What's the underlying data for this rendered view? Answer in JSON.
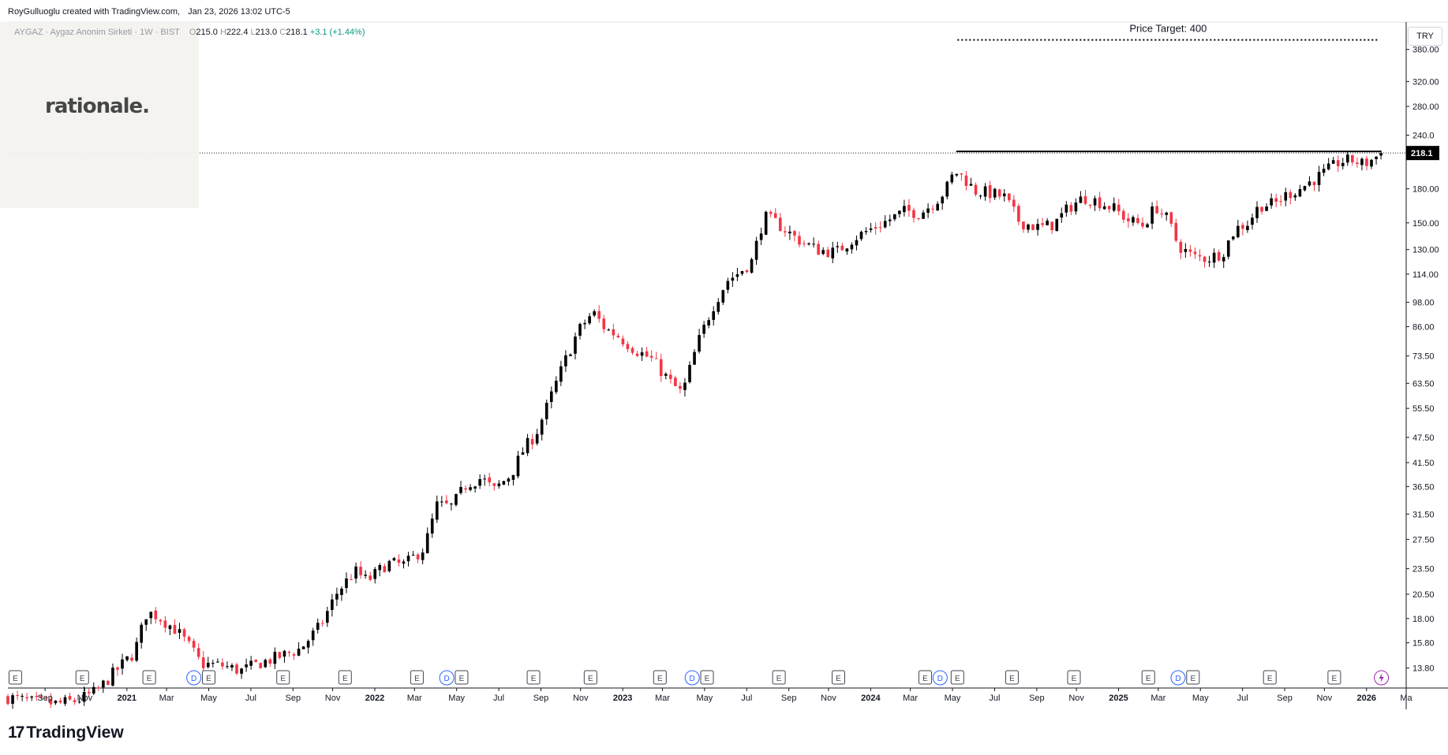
{
  "header": {
    "author": "RoyGulluoglu created with TradingView.com,",
    "timestamp": "Jan 23, 2026 13:02 UTC-5"
  },
  "legend": {
    "symbol": "AYGAZ · Aygaz Anonim Sirketi · 1W · BIST",
    "open_label": "O",
    "open": "215.0",
    "high_label": "H",
    "high": "222.4",
    "low_label": "L",
    "low": "213.0",
    "close_label": "C",
    "close": "218.1",
    "change": "+3.1 (+1.44%)"
  },
  "watermark": {
    "text": "rationale."
  },
  "currency_button": {
    "label": "TRY"
  },
  "footer": {
    "brand": "TradingView",
    "brand_mark": "17"
  },
  "colors": {
    "up": "#000000",
    "down": "#f23645",
    "legend_change": "#089981",
    "event_dividend": "#2962ff",
    "event_earnings": "#434651",
    "event_flash": "#9c27b0"
  },
  "chart_data": {
    "type": "candlestick",
    "scale": "log",
    "ylim": [
      12.4,
      440
    ],
    "y_ticks": [
      13.8,
      15.8,
      18.0,
      20.5,
      23.5,
      27.5,
      31.5,
      36.5,
      41.5,
      47.5,
      55.5,
      63.5,
      73.5,
      86.0,
      98.0,
      114.0,
      130.0,
      150.0,
      180.0,
      240.0,
      280.0,
      320.0,
      380.0
    ],
    "y_tick_labels": [
      "13.80",
      "15.80",
      "18.00",
      "20.50",
      "23.50",
      "27.50",
      "31.50",
      "36.50",
      "41.50",
      "47.50",
      "55.50",
      "63.50",
      "73.50",
      "86.00",
      "98.00",
      "114.00",
      "130.00",
      "150.00",
      "180.00",
      "240.0",
      "280.00",
      "320.00",
      "380.00"
    ],
    "last_price": 218.1,
    "last_price_label": "218.1",
    "x_ticks": [
      {
        "label": "Sep",
        "t": 2020.67
      },
      {
        "label": "Nov",
        "t": 2020.83
      },
      {
        "label": "2021",
        "t": 2021.0
      },
      {
        "label": "Mar",
        "t": 2021.16
      },
      {
        "label": "May",
        "t": 2021.33
      },
      {
        "label": "Jul",
        "t": 2021.5
      },
      {
        "label": "Sep",
        "t": 2021.67
      },
      {
        "label": "Nov",
        "t": 2021.83
      },
      {
        "label": "2022",
        "t": 2022.0
      },
      {
        "label": "Mar",
        "t": 2022.16
      },
      {
        "label": "May",
        "t": 2022.33
      },
      {
        "label": "Jul",
        "t": 2022.5
      },
      {
        "label": "Sep",
        "t": 2022.67
      },
      {
        "label": "Nov",
        "t": 2022.83
      },
      {
        "label": "2023",
        "t": 2023.0
      },
      {
        "label": "Mar",
        "t": 2023.16
      },
      {
        "label": "May",
        "t": 2023.33
      },
      {
        "label": "Jul",
        "t": 2023.5
      },
      {
        "label": "Sep",
        "t": 2023.67
      },
      {
        "label": "Nov",
        "t": 2023.83
      },
      {
        "label": "2024",
        "t": 2024.0
      },
      {
        "label": "Mar",
        "t": 2024.16
      },
      {
        "label": "May",
        "t": 2024.33
      },
      {
        "label": "Jul",
        "t": 2024.5
      },
      {
        "label": "Sep",
        "t": 2024.67
      },
      {
        "label": "Nov",
        "t": 2024.83
      },
      {
        "label": "2025",
        "t": 2025.0
      },
      {
        "label": "Mar",
        "t": 2025.16
      },
      {
        "label": "May",
        "t": 2025.33
      },
      {
        "label": "Jul",
        "t": 2025.5
      },
      {
        "label": "Sep",
        "t": 2025.67
      },
      {
        "label": "Nov",
        "t": 2025.83
      },
      {
        "label": "2026",
        "t": 2026.0
      },
      {
        "label": "Ma",
        "t": 2026.16
      }
    ],
    "x_range": [
      2020.52,
      2026.16
    ],
    "anchors": [
      [
        2020.52,
        11.8
      ],
      [
        2020.62,
        11.5
      ],
      [
        2020.72,
        11.4
      ],
      [
        2020.8,
        11.6
      ],
      [
        2020.88,
        12.2
      ],
      [
        2020.95,
        13.5
      ],
      [
        2021.03,
        15.0
      ],
      [
        2021.08,
        18.6
      ],
      [
        2021.12,
        18.3
      ],
      [
        2021.2,
        16.9
      ],
      [
        2021.26,
        15.3
      ],
      [
        2021.3,
        14.1
      ],
      [
        2021.38,
        14.0
      ],
      [
        2021.46,
        13.6
      ],
      [
        2021.54,
        14.2
      ],
      [
        2021.62,
        14.7
      ],
      [
        2021.7,
        15.3
      ],
      [
        2021.78,
        17.3
      ],
      [
        2021.85,
        20.8
      ],
      [
        2021.92,
        23.2
      ],
      [
        2021.97,
        22.0
      ],
      [
        2022.05,
        24.2
      ],
      [
        2022.12,
        24.0
      ],
      [
        2022.2,
        26.3
      ],
      [
        2022.25,
        33.0
      ],
      [
        2022.31,
        32.8
      ],
      [
        2022.37,
        37.0
      ],
      [
        2022.43,
        38.2
      ],
      [
        2022.48,
        35.8
      ],
      [
        2022.55,
        39.0
      ],
      [
        2022.6,
        44.5
      ],
      [
        2022.65,
        48.5
      ],
      [
        2022.7,
        57.0
      ],
      [
        2022.76,
        70.0
      ],
      [
        2022.82,
        84.0
      ],
      [
        2022.88,
        93.0
      ],
      [
        2022.93,
        85.0
      ],
      [
        2022.98,
        82.0
      ],
      [
        2023.05,
        76.0
      ],
      [
        2023.12,
        72.0
      ],
      [
        2023.19,
        64.0
      ],
      [
        2023.24,
        60.0
      ],
      [
        2023.3,
        78.0
      ],
      [
        2023.36,
        95.0
      ],
      [
        2023.42,
        110.0
      ],
      [
        2023.47,
        115.0
      ],
      [
        2023.52,
        122.0
      ],
      [
        2023.57,
        155.0
      ],
      [
        2023.62,
        150.0
      ],
      [
        2023.7,
        138.0
      ],
      [
        2023.78,
        130.0
      ],
      [
        2023.86,
        128.0
      ],
      [
        2023.93,
        138.0
      ],
      [
        2024.0,
        145.0
      ],
      [
        2024.07,
        152.0
      ],
      [
        2024.14,
        160.0
      ],
      [
        2024.2,
        158.0
      ],
      [
        2024.26,
        168.0
      ],
      [
        2024.3,
        178.0
      ],
      [
        2024.34,
        198.0
      ],
      [
        2024.38,
        190.0
      ],
      [
        2024.42,
        178.0
      ],
      [
        2024.48,
        176.0
      ],
      [
        2024.54,
        172.0
      ],
      [
        2024.6,
        151.0
      ],
      [
        2024.68,
        146.0
      ],
      [
        2024.74,
        149.0
      ],
      [
        2024.8,
        163.0
      ],
      [
        2024.86,
        172.0
      ],
      [
        2024.92,
        168.0
      ],
      [
        2024.98,
        162.0
      ],
      [
        2025.04,
        152.0
      ],
      [
        2025.1,
        148.0
      ],
      [
        2025.15,
        164.0
      ],
      [
        2025.2,
        152.0
      ],
      [
        2025.24,
        133.0
      ],
      [
        2025.3,
        125.0
      ],
      [
        2025.36,
        124.0
      ],
      [
        2025.42,
        128.0
      ],
      [
        2025.47,
        145.0
      ],
      [
        2025.52,
        150.0
      ],
      [
        2025.57,
        165.0
      ],
      [
        2025.63,
        166.0
      ],
      [
        2025.68,
        175.0
      ],
      [
        2025.73,
        180.0
      ],
      [
        2025.78,
        188.0
      ],
      [
        2025.83,
        196.0
      ],
      [
        2025.89,
        208.0
      ],
      [
        2025.94,
        210.0
      ],
      [
        2025.99,
        205.0
      ],
      [
        2026.03,
        212.0
      ],
      [
        2026.06,
        218.1
      ]
    ],
    "events": [
      {
        "type": "E",
        "t": 2020.55
      },
      {
        "type": "E",
        "t": 2020.82
      },
      {
        "type": "E",
        "t": 2021.09
      },
      {
        "type": "D",
        "t": 2021.27
      },
      {
        "type": "E",
        "t": 2021.33
      },
      {
        "type": "E",
        "t": 2021.63
      },
      {
        "type": "E",
        "t": 2021.88
      },
      {
        "type": "E",
        "t": 2022.17
      },
      {
        "type": "D",
        "t": 2022.29
      },
      {
        "type": "E",
        "t": 2022.35
      },
      {
        "type": "E",
        "t": 2022.64
      },
      {
        "type": "E",
        "t": 2022.87
      },
      {
        "type": "E",
        "t": 2023.15
      },
      {
        "type": "D",
        "t": 2023.28
      },
      {
        "type": "E",
        "t": 2023.34
      },
      {
        "type": "E",
        "t": 2023.63
      },
      {
        "type": "E",
        "t": 2023.87
      },
      {
        "type": "E",
        "t": 2024.22
      },
      {
        "type": "D",
        "t": 2024.28
      },
      {
        "type": "E",
        "t": 2024.35
      },
      {
        "type": "E",
        "t": 2024.57
      },
      {
        "type": "E",
        "t": 2024.82
      },
      {
        "type": "E",
        "t": 2025.12
      },
      {
        "type": "D",
        "t": 2025.24
      },
      {
        "type": "E",
        "t": 2025.3
      },
      {
        "type": "E",
        "t": 2025.61
      },
      {
        "type": "E",
        "t": 2025.87
      },
      {
        "type": "F",
        "t": 2026.06
      }
    ],
    "annotations": [
      {
        "type": "hline",
        "price": 220,
        "t_start": 2024.345,
        "t_end": 2026.06,
        "style": "solid"
      },
      {
        "type": "hline",
        "price": 400,
        "t_start": 2024.35,
        "t_end": 2026.05,
        "style": "dotted",
        "label": "Price Target: 400"
      }
    ]
  }
}
